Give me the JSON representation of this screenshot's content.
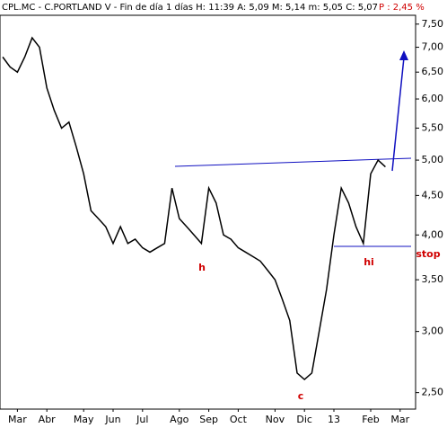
{
  "chart_data": {
    "type": "line",
    "title": "CPL.MC - C.PORTLAND V - Fin de día 1 días  H: 11:39  A: 5,09  M: 5,14  m: 5,05  C: 5,07",
    "subtitle": "P : 2,45 %",
    "categories": [
      null,
      null,
      "Mar",
      null,
      null,
      null,
      "Abr",
      null,
      null,
      null,
      null,
      "May",
      null,
      null,
      null,
      "Jun",
      null,
      null,
      null,
      "Jul",
      null,
      null,
      null,
      null,
      "Ago",
      null,
      null,
      null,
      "Sep",
      null,
      null,
      null,
      "Oct",
      null,
      null,
      null,
      null,
      "Nov",
      null,
      null,
      null,
      "Dic",
      null,
      null,
      null,
      "13",
      null,
      null,
      null,
      null,
      "Feb",
      null,
      null,
      null,
      "Mar",
      null,
      null
    ],
    "series": [
      {
        "name": "CPL.MC",
        "color": "#000000",
        "values": [
          6.8,
          6.6,
          6.5,
          6.8,
          7.2,
          7.0,
          6.2,
          5.8,
          5.5,
          5.6,
          5.2,
          4.8,
          4.3,
          4.2,
          4.1,
          3.9,
          4.1,
          3.9,
          3.95,
          3.85,
          3.8,
          3.85,
          3.9,
          4.6,
          4.2,
          4.1,
          4.0,
          3.9,
          4.6,
          4.4,
          4.0,
          3.95,
          3.85,
          3.8,
          3.75,
          3.7,
          3.6,
          3.5,
          3.3,
          3.1,
          2.65,
          2.6,
          2.65,
          3.0,
          3.4,
          4.0,
          4.6,
          4.4,
          4.1,
          3.9,
          4.8,
          5.0,
          4.9,
          null,
          null,
          null,
          null
        ]
      }
    ],
    "log_scale": true,
    "ylim": [
      2.38,
      7.7
    ],
    "yticks": [
      {
        "value": 2.5,
        "label": "2,50"
      },
      {
        "value": 3,
        "label": "3,00"
      },
      {
        "value": 3.5,
        "label": "3,50"
      },
      {
        "value": 4,
        "label": "4,00"
      },
      {
        "value": 4.5,
        "label": "4,50"
      },
      {
        "value": 5,
        "label": "5,00"
      },
      {
        "value": 5.5,
        "label": "5,50"
      },
      {
        "value": 6,
        "label": "6,00"
      },
      {
        "value": 6.5,
        "label": "6,50"
      },
      {
        "value": 7,
        "label": "7,00"
      },
      {
        "value": 7.5,
        "label": "7,50"
      }
    ],
    "annotations": [
      "h",
      "c",
      "hi",
      "stop"
    ]
  }
}
